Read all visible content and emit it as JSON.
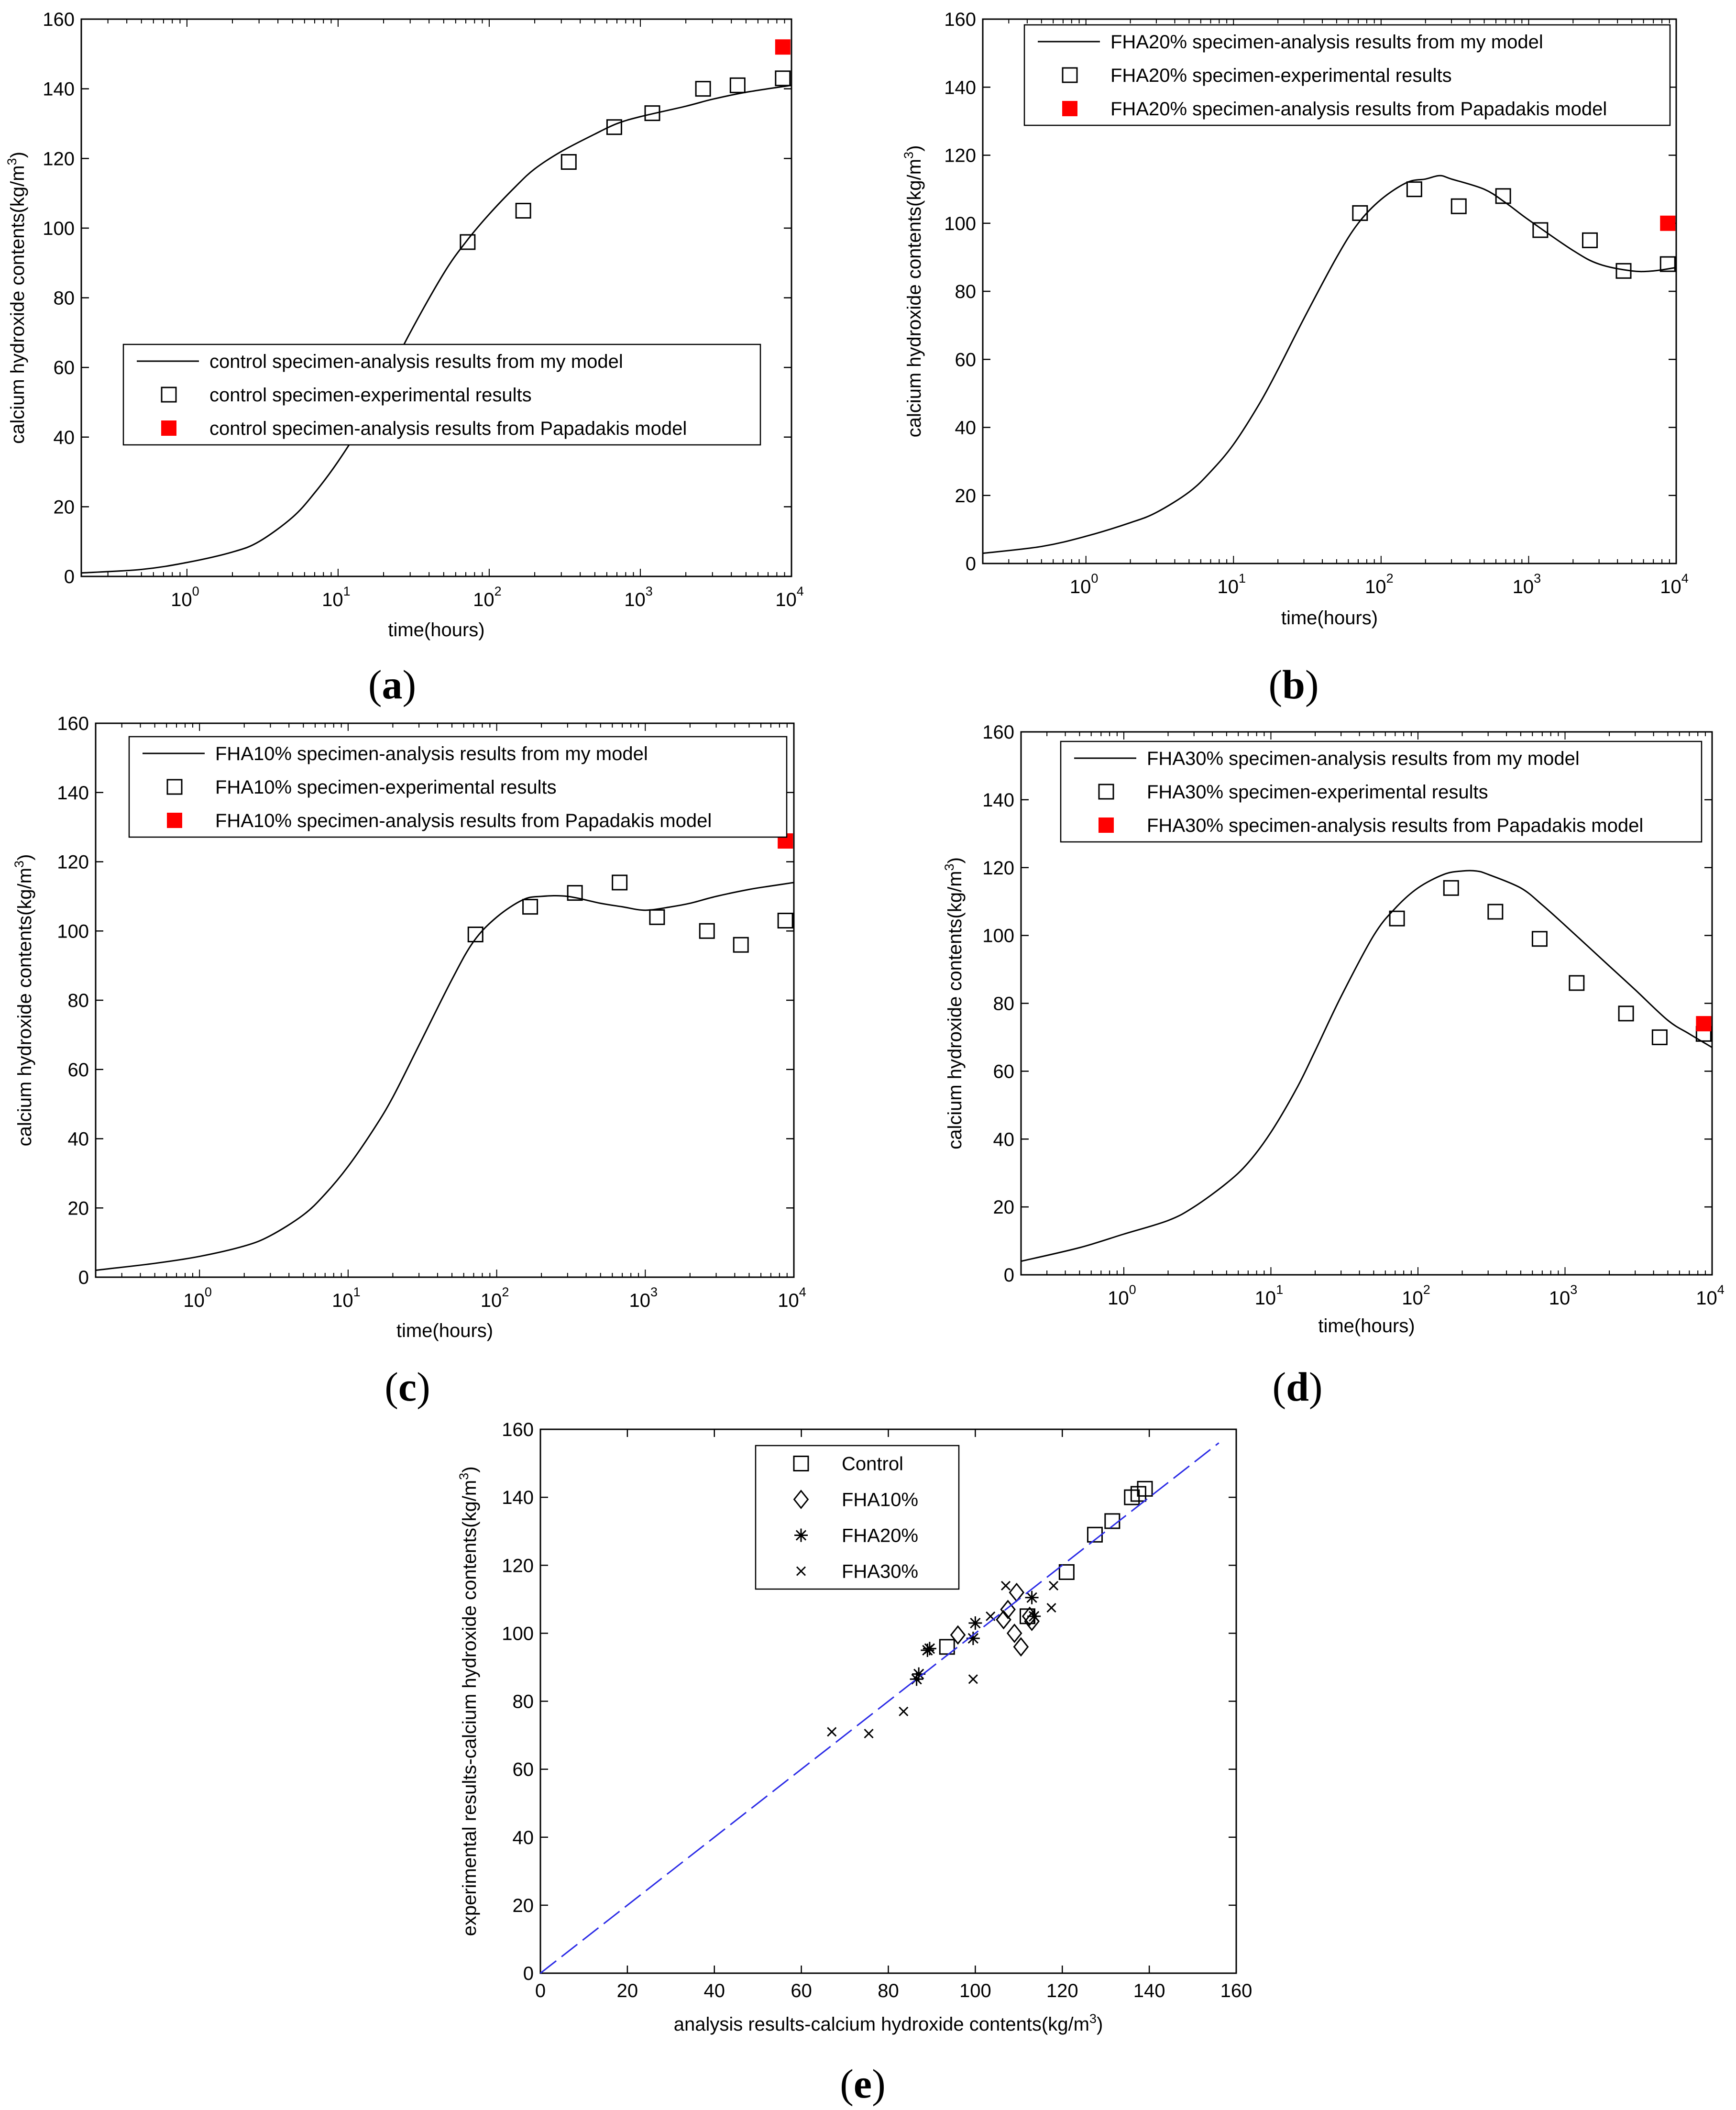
{
  "chart_data": [
    {
      "type": "line",
      "caption": "a",
      "xscale": "log",
      "xlim": [
        0.2,
        10000
      ],
      "ylim": [
        0,
        160
      ],
      "xticks": [
        1,
        10,
        100,
        1000,
        10000
      ],
      "xtick_base": "10",
      "xtick_exps": [
        "0",
        "1",
        "2",
        "3",
        "4"
      ],
      "yticks": [
        0,
        20,
        40,
        60,
        80,
        100,
        120,
        140,
        160
      ],
      "xlabel": "time(hours)",
      "ylabel_main": "calcium hydroxide contents(kg/m",
      "ylabel_sup": "3",
      "ylabel_end": ")",
      "legend": [
        "control specimen-analysis results  from my model",
        "control specimen-experimental results",
        "control specimen-analysis results  from Papadakis model"
      ],
      "legend_position": "center-left",
      "series": [
        {
          "name": "control specimen-analysis results  from my model",
          "kind": "line",
          "x": [
            0.2,
            0.5,
            1,
            2,
            3,
            5,
            7,
            10,
            15,
            20,
            30,
            50,
            70,
            100,
            150,
            200,
            300,
            500,
            700,
            1000,
            2000,
            3000,
            5000,
            10000
          ],
          "y": [
            1,
            2,
            4,
            7,
            10,
            17,
            24,
            33,
            45,
            55,
            70,
            87,
            96,
            104,
            112,
            117,
            122,
            127,
            130,
            132,
            135,
            137,
            139,
            141
          ]
        },
        {
          "name": "control specimen-experimental results",
          "kind": "square",
          "x": [
            72,
            168,
            336,
            672,
            1200,
            2600,
            4400,
            8760
          ],
          "y": [
            96,
            105,
            119,
            129,
            133,
            140,
            141,
            143
          ]
        },
        {
          "name": "control specimen-analysis results  from Papadakis model",
          "kind": "redsquare",
          "x": [
            8760
          ],
          "y": [
            152
          ]
        }
      ]
    },
    {
      "type": "line",
      "caption": "b",
      "xscale": "log",
      "xlim": [
        0.2,
        10000
      ],
      "ylim": [
        0,
        160
      ],
      "xticks": [
        1,
        10,
        100,
        1000,
        10000
      ],
      "xtick_base": "10",
      "xtick_exps": [
        "0",
        "1",
        "2",
        "3",
        "4"
      ],
      "yticks": [
        0,
        20,
        40,
        60,
        80,
        100,
        120,
        140,
        160
      ],
      "xlabel": "time(hours)",
      "ylabel_main": "calcium hydroxide contents(kg/m",
      "ylabel_sup": "3",
      "ylabel_end": ")",
      "legend": [
        "FHA20% specimen-analysis results from my model",
        "FHA20% specimen-experimental results",
        "FHA20% specimen-analysis results  from Papadakis model"
      ],
      "legend_position": "top-right",
      "series": [
        {
          "name": "FHA20% specimen-analysis results from my model",
          "kind": "line",
          "x": [
            0.2,
            0.5,
            1,
            2,
            3,
            5,
            7,
            10,
            15,
            20,
            30,
            50,
            70,
            100,
            150,
            200,
            250,
            300,
            500,
            700,
            1000,
            2000,
            3000,
            5000,
            7000,
            10000
          ],
          "y": [
            3,
            5,
            8,
            12,
            15,
            21,
            27,
            35,
            47,
            57,
            72,
            90,
            100,
            107,
            112,
            113,
            114,
            113,
            110,
            106,
            101,
            92,
            88,
            86,
            86,
            87
          ]
        },
        {
          "name": "FHA20% specimen-experimental results",
          "kind": "square",
          "x": [
            72,
            168,
            336,
            672,
            1200,
            2600,
            4400,
            8760
          ],
          "y": [
            103,
            110,
            105,
            108,
            98,
            95,
            86,
            88
          ]
        },
        {
          "name": "FHA20% specimen-analysis results  from Papadakis model",
          "kind": "redsquare",
          "x": [
            8760
          ],
          "y": [
            100
          ]
        }
      ]
    },
    {
      "type": "line",
      "caption": "c",
      "xscale": "log",
      "xlim": [
        0.2,
        10000
      ],
      "ylim": [
        0,
        160
      ],
      "xticks": [
        1,
        10,
        100,
        1000,
        10000
      ],
      "xtick_base": "10",
      "xtick_exps": [
        "0",
        "1",
        "2",
        "3",
        "4"
      ],
      "yticks": [
        0,
        20,
        40,
        60,
        80,
        100,
        120,
        140,
        160
      ],
      "xlabel": "time(hours)",
      "ylabel_main": "calcium hydroxide contents(kg/m",
      "ylabel_sup": "3",
      "ylabel_end": ")",
      "legend": [
        "FHA10% specimen-analysis results from my model",
        "FHA10% specimen-experimental results",
        "FHA10% specimen-analysis results  from Papadakis model"
      ],
      "legend_position": "top-right",
      "series": [
        {
          "name": "FHA10% specimen-analysis results from my model",
          "kind": "line",
          "x": [
            0.2,
            0.5,
            1,
            2,
            3,
            5,
            7,
            10,
            15,
            20,
            30,
            50,
            70,
            100,
            150,
            200,
            300,
            500,
            700,
            1000,
            1500,
            2000,
            3000,
            5000,
            7000,
            10000
          ],
          "y": [
            2,
            4,
            6,
            9,
            12,
            18,
            24,
            32,
            43,
            52,
            67,
            86,
            97,
            104,
            109,
            110,
            110,
            108,
            107,
            106,
            107,
            108,
            110,
            112,
            113,
            114
          ]
        },
        {
          "name": "FHA10% specimen-experimental results",
          "kind": "square",
          "x": [
            72,
            168,
            336,
            672,
            1200,
            2600,
            4400,
            8760
          ],
          "y": [
            99,
            107,
            111,
            114,
            104,
            100,
            96,
            103
          ]
        },
        {
          "name": "FHA10% specimen-analysis results  from Papadakis model",
          "kind": "redsquare",
          "x": [
            8760
          ],
          "y": [
            126
          ]
        }
      ]
    },
    {
      "type": "line",
      "caption": "d",
      "xscale": "log",
      "xlim": [
        0.2,
        10000
      ],
      "ylim": [
        0,
        160
      ],
      "xticks": [
        1,
        10,
        100,
        1000,
        10000
      ],
      "xtick_base": "10",
      "xtick_exps": [
        "0",
        "1",
        "2",
        "3",
        "4"
      ],
      "yticks": [
        0,
        20,
        40,
        60,
        80,
        100,
        120,
        140,
        160
      ],
      "xlabel": "time(hours)",
      "ylabel_main": "calcium hydroxide contents(kg/m",
      "ylabel_sup": "3",
      "ylabel_end": ")",
      "legend": [
        "FHA30% specimen-analysis results  from my model",
        "FHA30% specimen-experimental results",
        "FHA30% specimen-analysis results  from Papadakis model"
      ],
      "legend_position": "top-right",
      "series": [
        {
          "name": "FHA30% specimen-analysis results  from my model",
          "kind": "line",
          "x": [
            0.2,
            0.5,
            1,
            2,
            3,
            5,
            7,
            10,
            15,
            20,
            30,
            50,
            70,
            100,
            150,
            200,
            250,
            300,
            500,
            700,
            1000,
            2000,
            3000,
            5000,
            7000,
            10000
          ],
          "y": [
            4,
            8,
            12,
            16,
            20,
            27,
            33,
            42,
            55,
            66,
            82,
            100,
            108,
            114,
            118,
            119,
            119,
            118,
            114,
            109,
            103,
            91,
            84,
            75,
            71,
            67
          ]
        },
        {
          "name": "FHA30% specimen-experimental results",
          "kind": "square",
          "x": [
            72,
            168,
            336,
            672,
            1200,
            2600,
            4400,
            8760
          ],
          "y": [
            105,
            114,
            107,
            99,
            86,
            77,
            70,
            71
          ]
        },
        {
          "name": "FHA30% specimen-analysis results  from Papadakis model",
          "kind": "redsquare",
          "x": [
            8760
          ],
          "y": [
            74
          ]
        }
      ]
    },
    {
      "type": "scatter",
      "caption": "e",
      "xscale": "linear",
      "xlim": [
        0,
        160
      ],
      "ylim": [
        0,
        160
      ],
      "xticks": [
        0,
        20,
        40,
        60,
        80,
        100,
        120,
        140,
        160
      ],
      "yticks": [
        0,
        20,
        40,
        60,
        80,
        100,
        120,
        140,
        160
      ],
      "xlabel_main": "analysis results-calcium hydroxide contents(kg/m",
      "xlabel_sup": "3",
      "xlabel_end": ")",
      "ylabel_main": "experimental results-calcium hydroxide contents(kg/m",
      "ylabel_sup": "3",
      "ylabel_end": ")",
      "legend": [
        "Control",
        "FHA10%",
        "FHA20%",
        "FHA30%"
      ],
      "legend_position": "top-center",
      "series": [
        {
          "name": "Control",
          "kind": "square",
          "x": [
            93.5,
            112,
            121,
            127.5,
            131.5,
            136,
            137.5,
            139
          ],
          "y": [
            96,
            105,
            118,
            129,
            133,
            140,
            141,
            142.5
          ]
        },
        {
          "name": "FHA10%",
          "kind": "diamond",
          "x": [
            96,
            106.5,
            107.5,
            109,
            109.5,
            110.5,
            112.5,
            113
          ],
          "y": [
            99.5,
            104,
            107,
            100,
            112,
            96,
            105,
            103.5
          ]
        },
        {
          "name": "FHA20%",
          "kind": "asterisk",
          "x": [
            86.5,
            87,
            89,
            89.5,
            99.5,
            100,
            113,
            113.5
          ],
          "y": [
            86.5,
            88,
            95,
            95.5,
            98.5,
            103,
            110.5,
            105
          ]
        },
        {
          "name": "FHA30%",
          "kind": "cross",
          "x": [
            67,
            75.5,
            83.5,
            99.5,
            103.5,
            107,
            117.5,
            118
          ],
          "y": [
            71,
            70.5,
            77,
            86.5,
            105,
            114,
            107.5,
            114
          ]
        },
        {
          "name": "fit",
          "kind": "dashline",
          "x": [
            0,
            156
          ],
          "y": [
            0,
            156
          ]
        }
      ]
    }
  ]
}
